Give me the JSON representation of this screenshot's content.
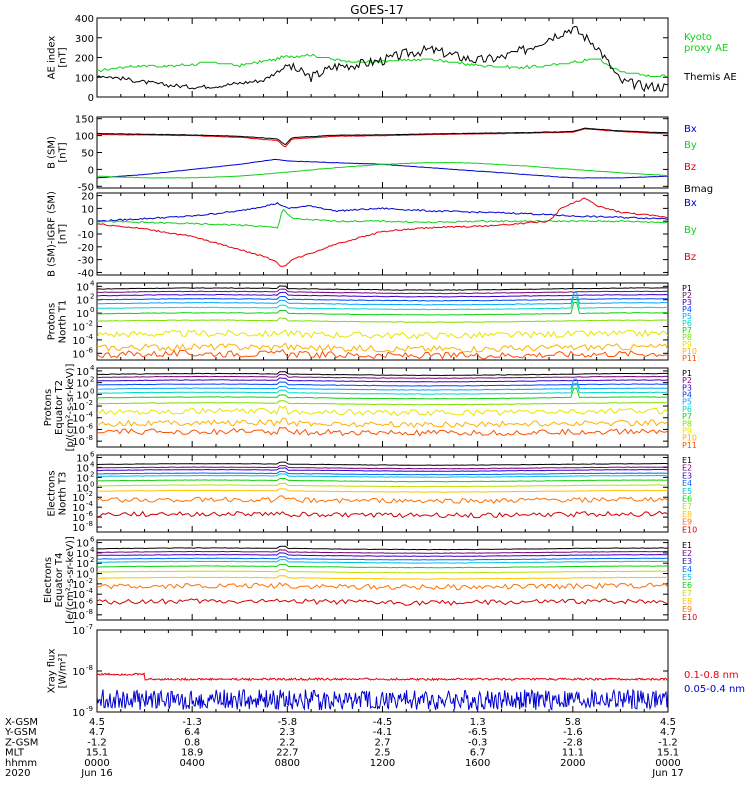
{
  "title": "GOES-17",
  "colors": {
    "black": "#000000",
    "red": "#e8000b",
    "green": "#12d11a",
    "blue": "#0000d0",
    "proton_palette": [
      "#000000",
      "#7a007a",
      "#3a00c8",
      "#0044ff",
      "#00a8ff",
      "#00d8c8",
      "#10d010",
      "#7ce000",
      "#e6e600",
      "#ffb000",
      "#ff5000",
      "#d00000"
    ],
    "electron_palette": [
      "#000000",
      "#7a007a",
      "#3a00c8",
      "#0066ff",
      "#00c0e0",
      "#10d010",
      "#bbe000",
      "#ffc000",
      "#ff7000",
      "#d00000"
    ]
  },
  "chart_data": [
    {
      "id": "ae",
      "type": "line",
      "ylabel_lines": [
        "AE index",
        "[nT]"
      ],
      "ylim": [
        0,
        400
      ],
      "y_ticks": [
        {
          "v": 0,
          "label": "0"
        },
        {
          "v": 100,
          "label": "100"
        },
        {
          "v": 200,
          "label": "200"
        },
        {
          "v": 300,
          "label": "300"
        },
        {
          "v": 400,
          "label": "400"
        }
      ],
      "series": [
        {
          "name": "Kyoto proxy AE",
          "legend_lines": [
            "Kyoto",
            "proxy AE"
          ],
          "color": "#12d11a",
          "x": [
            0,
            1,
            2,
            3,
            4,
            5,
            6,
            7,
            8,
            9,
            10,
            11,
            12,
            13,
            14,
            15,
            16,
            17,
            18,
            19,
            20,
            21,
            22,
            23,
            24
          ],
          "y": [
            130,
            150,
            160,
            155,
            165,
            175,
            160,
            180,
            205,
            210,
            190,
            175,
            180,
            185,
            190,
            175,
            160,
            155,
            150,
            160,
            175,
            195,
            130,
            110,
            105
          ]
        },
        {
          "name": "Themis AE",
          "legend_lines": [
            "Themis AE"
          ],
          "color": "#000000",
          "x": [
            0,
            1,
            2,
            3,
            4,
            5,
            6,
            7,
            8,
            9,
            10,
            11,
            12,
            13,
            14,
            15,
            16,
            17,
            18,
            19,
            20,
            21,
            22,
            23,
            24
          ],
          "y": [
            110,
            95,
            75,
            60,
            50,
            55,
            70,
            85,
            160,
            100,
            155,
            165,
            185,
            220,
            240,
            210,
            185,
            200,
            240,
            300,
            350,
            260,
            80,
            55,
            50
          ]
        }
      ]
    },
    {
      "id": "bsm",
      "type": "line",
      "ylabel_lines": [
        "B (SM)",
        "[nT]"
      ],
      "ylim": [
        -55,
        155
      ],
      "y_ticks": [
        {
          "v": -50,
          "label": "-50"
        },
        {
          "v": 0,
          "label": "0"
        },
        {
          "v": 50,
          "label": "50"
        },
        {
          "v": 100,
          "label": "100"
        },
        {
          "v": 150,
          "label": "150"
        }
      ],
      "series": [
        {
          "name": "Bx",
          "legend_lines": [
            "Bx"
          ],
          "color": "#0000d0",
          "x": [
            0,
            2,
            4,
            6,
            7.5,
            8,
            10,
            12,
            14,
            16,
            18,
            20,
            22,
            24
          ],
          "y": [
            -25,
            -15,
            0,
            15,
            30,
            25,
            20,
            15,
            5,
            -5,
            -15,
            -25,
            -25,
            -20
          ]
        },
        {
          "name": "By",
          "legend_lines": [
            "By"
          ],
          "color": "#12d11a",
          "x": [
            0,
            2,
            4,
            6,
            8,
            10,
            12,
            14,
            15,
            16,
            18,
            20,
            22,
            24
          ],
          "y": [
            -20,
            -25,
            -25,
            -20,
            -8,
            5,
            15,
            20,
            20,
            18,
            10,
            0,
            -10,
            -18
          ]
        },
        {
          "name": "Bz",
          "legend_lines": [
            "Bz"
          ],
          "color": "#e8000b",
          "x": [
            0,
            2,
            4,
            6,
            7.6,
            7.9,
            8.2,
            10,
            12,
            14,
            16,
            18,
            20,
            20.5,
            22,
            24
          ],
          "y": [
            103,
            102,
            100,
            95,
            85,
            65,
            90,
            98,
            100,
            103,
            105,
            107,
            110,
            120,
            112,
            105
          ]
        },
        {
          "name": "Bmag",
          "legend_lines": [
            "Bmag"
          ],
          "color": "#000000",
          "x": [
            0,
            2,
            4,
            6,
            7.6,
            7.9,
            8.2,
            10,
            12,
            14,
            16,
            18,
            20,
            20.5,
            22,
            24
          ],
          "y": [
            106,
            104,
            102,
            98,
            90,
            72,
            94,
            101,
            102,
            105,
            107,
            109,
            112,
            122,
            114,
            108
          ]
        }
      ]
    },
    {
      "id": "bdiff",
      "type": "line",
      "ylabel_lines": [
        "B (SM)-IGRF (SM)",
        "[nT]"
      ],
      "ylim": [
        -42,
        22
      ],
      "y_ticks": [
        {
          "v": -40,
          "label": "-40"
        },
        {
          "v": -30,
          "label": "-30"
        },
        {
          "v": -20,
          "label": "-20"
        },
        {
          "v": -10,
          "label": "-10"
        },
        {
          "v": 0,
          "label": "0"
        },
        {
          "v": 10,
          "label": "10"
        },
        {
          "v": 20,
          "label": "20"
        }
      ],
      "series": [
        {
          "name": "Bx",
          "legend_lines": [
            "Bx"
          ],
          "color": "#0000d0",
          "x": [
            0,
            2,
            4,
            6,
            7.6,
            8,
            9,
            10,
            12,
            14,
            16,
            18,
            20,
            22,
            24
          ],
          "y": [
            0,
            2,
            4,
            8,
            14,
            10,
            12,
            8,
            10,
            8,
            7,
            6,
            4,
            3,
            2
          ]
        },
        {
          "name": "By",
          "legend_lines": [
            "By"
          ],
          "color": "#12d11a",
          "x": [
            0,
            2,
            4,
            6,
            7.6,
            7.8,
            8.2,
            10,
            12,
            14,
            16,
            18,
            20,
            22,
            24
          ],
          "y": [
            0,
            -1,
            -2,
            -3,
            -5,
            10,
            2,
            0,
            0,
            -1,
            0,
            0,
            0,
            0,
            -1
          ]
        },
        {
          "name": "Bz",
          "legend_lines": [
            "Bz"
          ],
          "color": "#e8000b",
          "x": [
            0,
            2,
            4,
            6,
            7.4,
            7.8,
            8.2,
            9,
            10,
            12,
            14,
            16,
            17,
            19,
            19.5,
            20.5,
            21,
            22,
            23,
            24
          ],
          "y": [
            -2,
            -6,
            -12,
            -22,
            -30,
            -36,
            -30,
            -25,
            -18,
            -8,
            -5,
            -4,
            -3,
            0,
            10,
            18,
            12,
            7,
            5,
            3
          ]
        }
      ]
    },
    {
      "id": "protons-t1",
      "type": "line",
      "log": true,
      "ylabel_lines": [
        "Protons",
        "North T1"
      ],
      "ylim_log": [
        -7,
        4.5
      ],
      "y_ticks": [
        {
          "e": 4,
          "label": "10"
        },
        {
          "e": 2,
          "label": "10"
        },
        {
          "e": 0,
          "label": "10"
        },
        {
          "e": -2,
          "label": "10"
        },
        {
          "e": -4,
          "label": "10"
        },
        {
          "e": -6,
          "label": "10"
        }
      ],
      "legend": [
        "P1",
        "P2",
        "P3",
        "P4",
        "P5",
        "P6",
        "P7",
        "P8",
        "P9",
        "P10",
        "P11"
      ],
      "series_levels": [
        3.6,
        3.1,
        2.6,
        2.0,
        1.4,
        0.7,
        -0.1,
        -1.2,
        -3.2,
        -5.2,
        -6.2
      ]
    },
    {
      "id": "protons-t2",
      "type": "line",
      "log": true,
      "ylabel_lines": [
        "Protons",
        "Equator T2",
        "[p/(cm²-s-sr-keV)]"
      ],
      "ylim_log": [
        -9,
        4.5
      ],
      "y_ticks": [
        {
          "e": 4,
          "label": "10"
        },
        {
          "e": 2,
          "label": "10"
        },
        {
          "e": 0,
          "label": "10"
        },
        {
          "e": -2,
          "label": "10"
        },
        {
          "e": -4,
          "label": "10"
        },
        {
          "e": -6,
          "label": "10"
        },
        {
          "e": -8,
          "label": "10"
        }
      ],
      "legend": [
        "P1",
        "P2",
        "P3",
        "P4",
        "P5",
        "P6",
        "P7",
        "P8",
        "P9",
        "P10",
        "P11"
      ],
      "series_levels": [
        3.4,
        2.9,
        2.3,
        1.6,
        0.9,
        0.2,
        -0.6,
        -1.6,
        -3.0,
        -5.0,
        -6.5
      ]
    },
    {
      "id": "electrons-t3",
      "type": "line",
      "log": true,
      "ylabel_lines": [
        "Electrons",
        "North T3"
      ],
      "ylim_log": [
        -9,
        6.5
      ],
      "y_ticks": [
        {
          "e": 6,
          "label": "10"
        },
        {
          "e": 4,
          "label": "10"
        },
        {
          "e": 2,
          "label": "10"
        },
        {
          "e": 0,
          "label": "10"
        },
        {
          "e": -2,
          "label": "10"
        },
        {
          "e": -4,
          "label": "10"
        },
        {
          "e": -6,
          "label": "10"
        },
        {
          "e": -8,
          "label": "10"
        }
      ],
      "legend": [
        "E1",
        "E2",
        "E3",
        "E4",
        "E5",
        "E6",
        "E7",
        "E8",
        "E9",
        "E10"
      ],
      "series_levels": [
        4.6,
        3.9,
        3.4,
        2.7,
        2.2,
        1.3,
        0.3,
        -0.8,
        -2.6,
        -5.5
      ]
    },
    {
      "id": "electrons-t4",
      "type": "line",
      "log": true,
      "ylabel_lines": [
        "Electrons",
        "Equator T4",
        "[e/(cm²-s-sr-keV)]"
      ],
      "ylim_log": [
        -9,
        6.5
      ],
      "y_ticks": [
        {
          "e": 6,
          "label": "10"
        },
        {
          "e": 4,
          "label": "10"
        },
        {
          "e": 2,
          "label": "10"
        },
        {
          "e": 0,
          "label": "10"
        },
        {
          "e": -2,
          "label": "10"
        },
        {
          "e": -4,
          "label": "10"
        },
        {
          "e": -6,
          "label": "10"
        },
        {
          "e": -8,
          "label": "10"
        }
      ],
      "legend": [
        "E1",
        "E2",
        "E3",
        "E4",
        "E5",
        "E6",
        "E7",
        "E8",
        "E9",
        "E10"
      ],
      "series_levels": [
        4.8,
        4.1,
        3.5,
        2.8,
        2.2,
        1.3,
        0.3,
        -0.9,
        -2.5,
        -5.5
      ]
    },
    {
      "id": "xray",
      "type": "line",
      "log": true,
      "ylabel_lines": [
        "Xray flux",
        "[W/m²]"
      ],
      "ylim_log": [
        -9,
        -7
      ],
      "y_ticks": [
        {
          "e": -7,
          "label": "10"
        },
        {
          "e": -8,
          "label": "10"
        },
        {
          "e": -9,
          "label": "10"
        }
      ],
      "series": [
        {
          "name": "0.1-0.8 nm",
          "legend_lines": [
            "0.1-0.8 nm"
          ],
          "color": "#e8000b",
          "level": -8.2
        },
        {
          "name": "0.05-0.4 nm",
          "legend_lines": [
            "0.05-0.4 nm"
          ],
          "color": "#0000d0",
          "level": -8.7
        }
      ]
    }
  ],
  "x_axis": {
    "row_labels": [
      "X-GSM",
      "Y-GSM",
      "Z-GSM",
      "MLT",
      "hhmm",
      "2020"
    ],
    "columns": [
      {
        "values": [
          "4.5",
          "4.7",
          "-1.2",
          "15.1",
          "0000",
          "Jun 16"
        ]
      },
      {
        "values": [
          "-1.3",
          "6.4",
          "0.8",
          "18.9",
          "0400",
          ""
        ]
      },
      {
        "values": [
          "-5.8",
          "2.3",
          "2.2",
          "22.7",
          "0800",
          ""
        ]
      },
      {
        "values": [
          "-4.5",
          "-4.1",
          "2.7",
          "2.5",
          "1200",
          ""
        ]
      },
      {
        "values": [
          "1.3",
          "-6.5",
          "-0.3",
          "6.7",
          "1600",
          ""
        ]
      },
      {
        "values": [
          "5.8",
          "-1.6",
          "-2.8",
          "11.1",
          "2000",
          ""
        ]
      },
      {
        "values": [
          "4.5",
          "4.7",
          "-1.2",
          "15.1",
          "0000",
          "Jun 17"
        ]
      }
    ]
  }
}
